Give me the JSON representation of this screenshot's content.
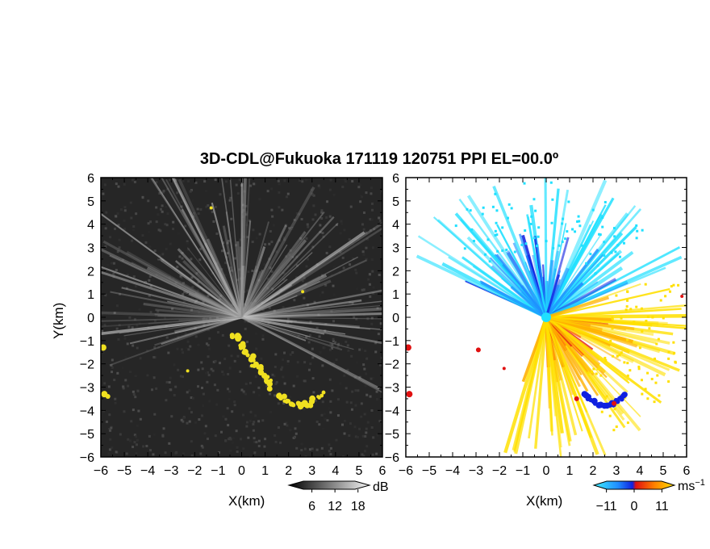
{
  "title": "3D-CDL@Fukuoka 171119 120751 PPI EL=00.0º",
  "chart_data": [
    {
      "type": "heatmap",
      "name": "reflectivity",
      "xlabel": "X(km)",
      "ylabel": "Y(km)",
      "xlim": [
        -6,
        6
      ],
      "ylim": [
        -6,
        6
      ],
      "x_ticks": [
        "−6",
        "−5",
        "−4",
        "−3",
        "−2",
        "−1",
        "0",
        "1",
        "2",
        "3",
        "4",
        "5",
        "6"
      ],
      "y_ticks": [
        "6",
        "5",
        "4",
        "3",
        "2",
        "1",
        "0",
        "−1",
        "−2",
        "−3",
        "−4",
        "−5",
        "−6"
      ],
      "background": "#262626",
      "highlight_color": "#f0e020",
      "colorbar": {
        "unit": "dB",
        "ticks": [
          "6",
          "12",
          "18"
        ],
        "tick_values": [
          6,
          12,
          18
        ],
        "range": [
          0,
          21
        ]
      }
    },
    {
      "type": "heatmap",
      "name": "doppler-velocity",
      "xlabel": "X(km)",
      "xlim": [
        -6,
        6
      ],
      "ylim": [
        -6,
        6
      ],
      "x_ticks": [
        "−6",
        "−5",
        "−4",
        "−3",
        "−2",
        "−1",
        "0",
        "1",
        "2",
        "3",
        "4",
        "5",
        "6"
      ],
      "y_ticks": [
        "6",
        "5",
        "4",
        "3",
        "2",
        "1",
        "0",
        "−1",
        "−2",
        "−3",
        "−4",
        "−5",
        "−6"
      ],
      "colors": [
        "#20e0ff",
        "#1f8cff",
        "#1020e0",
        "#e01010",
        "#ff5010",
        "#ffb000",
        "#ffe000"
      ],
      "colorbar": {
        "unit": "ms",
        "unit_sup": "−1",
        "ticks": [
          "−11",
          "0",
          "11"
        ],
        "tick_values": [
          -11,
          0,
          11
        ],
        "range": [
          -16,
          16
        ]
      }
    }
  ]
}
